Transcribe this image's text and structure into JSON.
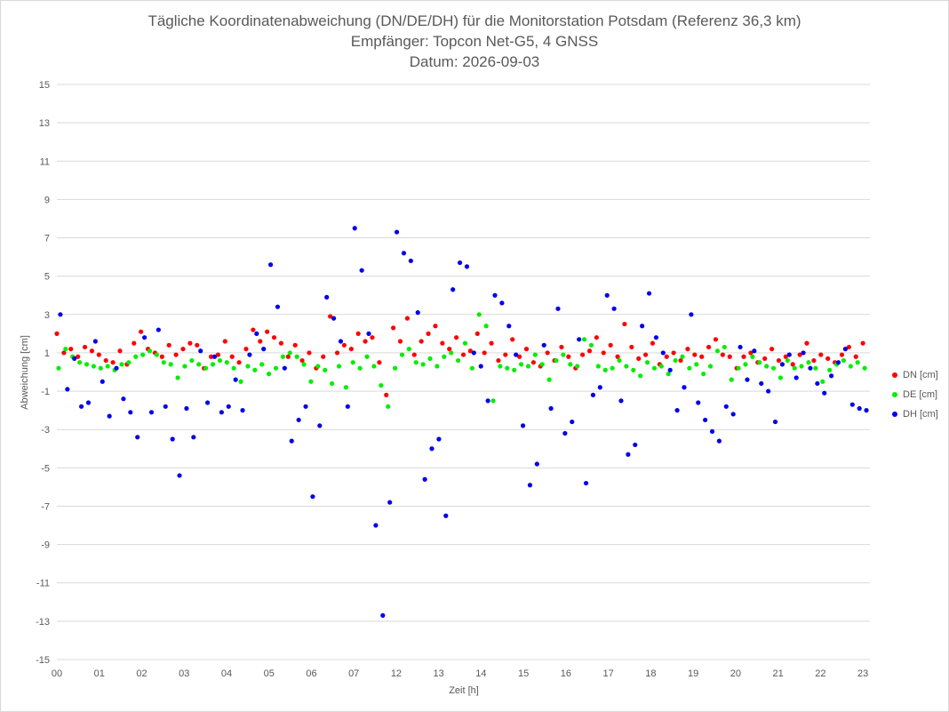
{
  "chart_data": {
    "type": "scatter",
    "title": "Tägliche Koordinatenabweichung (DN/DE/DH) für die Monitorstation Potsdam (Referenz 36,3 km)",
    "subtitle1": "Empfänger: Topcon Net-G5, 4 GNSS",
    "subtitle2": "Datum: 2026-09-03",
    "xlabel": "Zeit [h]",
    "ylabel": "Abweichung [cm]",
    "ylim": [
      -15,
      15
    ],
    "xlim": [
      0,
      23.2
    ],
    "y_ticks": [
      "15",
      "13",
      "11",
      "9",
      "7",
      "5",
      "3",
      "1",
      "-1",
      "-3",
      "-5",
      "-7",
      "-9",
      "-11",
      "-13",
      "-15"
    ],
    "x_ticks": [
      "00",
      "01",
      "02",
      "03",
      "04",
      "05",
      "06",
      "07",
      "12",
      "13",
      "14",
      "15",
      "16",
      "17",
      "18",
      "19",
      "20",
      "21",
      "22",
      "23"
    ],
    "grid": "horizontal",
    "legend_position": "right",
    "series": [
      {
        "name": "DN [cm]",
        "color": "#ff0000",
        "x": [
          0.0,
          0.2,
          0.4,
          0.6,
          0.8,
          1.0,
          1.2,
          1.4,
          1.6,
          1.8,
          2.0,
          2.2,
          2.4,
          2.6,
          2.8,
          3.0,
          3.2,
          3.4,
          3.6,
          3.8,
          4.0,
          4.2,
          4.4,
          4.6,
          4.8,
          5.0,
          5.2,
          5.4,
          5.6,
          5.8,
          6.0,
          6.2,
          6.4,
          6.6,
          6.8,
          7.0,
          7.2,
          7.4,
          7.6,
          7.8,
          8.0,
          8.2,
          8.4,
          8.6,
          8.8,
          9.0,
          9.2,
          9.4,
          9.6,
          9.8,
          10.0,
          10.2,
          10.4,
          10.6,
          10.8,
          11.0,
          11.2,
          11.4,
          11.6,
          11.8,
          12.0,
          12.2,
          12.4,
          12.6,
          12.8,
          13.0,
          13.2,
          13.4,
          13.6,
          13.8,
          14.0,
          14.2,
          14.4,
          14.6,
          14.8,
          15.0,
          15.2,
          15.4,
          15.6,
          15.8,
          16.0,
          16.2,
          16.4,
          16.6,
          16.8,
          17.0,
          17.2,
          17.4,
          17.6,
          17.8,
          18.0,
          18.2,
          18.4,
          18.6,
          18.8,
          19.0,
          19.2,
          19.4,
          19.6,
          19.8,
          20.0,
          20.2,
          20.4,
          20.6,
          20.8,
          21.0,
          21.2,
          21.4,
          21.6,
          21.8,
          22.0,
          22.2,
          22.4,
          22.6,
          22.8,
          23.0
        ],
        "y": [
          2.0,
          1.0,
          1.2,
          0.8,
          1.3,
          1.1,
          0.9,
          0.6,
          0.5,
          1.1,
          0.4,
          1.5,
          2.1,
          1.2,
          1.0,
          0.8,
          1.4,
          0.9,
          1.2,
          1.5,
          1.4,
          0.2,
          0.8,
          0.9,
          1.6,
          0.8,
          0.5,
          1.2,
          2.2,
          1.6,
          2.1,
          1.8,
          1.5,
          0.8,
          1.4,
          0.6,
          1.0,
          0.2,
          0.8,
          2.9,
          1.0,
          1.4,
          1.2,
          2.0,
          1.6,
          1.8,
          0.5,
          -1.2,
          2.3,
          1.6,
          2.8,
          0.9,
          1.6,
          2.0,
          2.4,
          1.5,
          1.2,
          1.8,
          0.9,
          1.1,
          2.0,
          1.0,
          1.5,
          0.6,
          0.9,
          1.7,
          0.8,
          1.2,
          0.5,
          0.3,
          1.0,
          0.6,
          1.3,
          0.8,
          0.2,
          0.9,
          1.1,
          1.8,
          1.0,
          1.4,
          0.8,
          2.5,
          1.3,
          0.7,
          0.9,
          1.5,
          0.4,
          0.8,
          1.0,
          0.6,
          1.2,
          0.9,
          0.8,
          1.3,
          1.7,
          0.9,
          0.8,
          0.2,
          0.8,
          1.0,
          0.5,
          0.7,
          1.2,
          0.6,
          0.8,
          0.4,
          0.9,
          1.5,
          0.6,
          0.9,
          0.7,
          0.5,
          0.9,
          1.3,
          0.8,
          1.5
        ]
      },
      {
        "name": "DE [cm]",
        "color": "#00ee00",
        "x": [
          0.05,
          0.25,
          0.45,
          0.65,
          0.85,
          1.05,
          1.25,
          1.45,
          1.65,
          1.85,
          2.05,
          2.25,
          2.45,
          2.65,
          2.85,
          3.05,
          3.25,
          3.45,
          3.65,
          3.85,
          4.05,
          4.25,
          4.45,
          4.65,
          4.85,
          5.05,
          5.25,
          5.45,
          5.65,
          5.85,
          6.05,
          6.25,
          6.45,
          6.65,
          6.85,
          7.05,
          7.25,
          7.45,
          7.65,
          7.85,
          8.05,
          8.25,
          8.45,
          8.65,
          8.85,
          9.05,
          9.25,
          9.45,
          9.65,
          9.85,
          10.05,
          10.25,
          10.45,
          10.65,
          10.85,
          11.05,
          11.25,
          11.45,
          11.65,
          11.85,
          12.05,
          12.25,
          12.45,
          12.65,
          12.85,
          13.05,
          13.25,
          13.45,
          13.65,
          13.85,
          14.05,
          14.25,
          14.45,
          14.65,
          14.85,
          15.05,
          15.25,
          15.45,
          15.65,
          15.85,
          16.05,
          16.25,
          16.45,
          16.65,
          16.85,
          17.05,
          17.25,
          17.45,
          17.65,
          17.85,
          18.05,
          18.25,
          18.45,
          18.65,
          18.85,
          19.05,
          19.25,
          19.45,
          19.65,
          19.85,
          20.05,
          20.25,
          20.45,
          20.65,
          20.85,
          21.05,
          21.25,
          21.45,
          21.65,
          21.85,
          22.05,
          22.25,
          22.45,
          22.65,
          22.85,
          23.05
        ],
        "y": [
          0.2,
          1.2,
          0.8,
          0.5,
          0.4,
          0.3,
          0.2,
          0.3,
          0.1,
          0.4,
          0.5,
          0.8,
          0.9,
          1.1,
          0.9,
          0.5,
          0.4,
          -0.3,
          0.3,
          0.6,
          0.4,
          0.2,
          0.4,
          0.6,
          0.5,
          0.2,
          -0.5,
          0.3,
          0.1,
          0.4,
          -0.1,
          0.2,
          0.8,
          1.0,
          0.8,
          0.4,
          -0.5,
          0.3,
          0.1,
          -0.6,
          0.3,
          -0.8,
          0.5,
          0.2,
          0.8,
          0.3,
          -0.7,
          -1.8,
          0.2,
          0.9,
          1.2,
          0.5,
          0.4,
          0.7,
          0.3,
          0.8,
          1.0,
          0.6,
          1.5,
          0.2,
          3.0,
          2.4,
          -1.5,
          0.3,
          0.2,
          0.1,
          0.4,
          0.3,
          0.9,
          0.4,
          -0.4,
          0.6,
          0.9,
          0.4,
          0.3,
          1.7,
          1.4,
          0.3,
          0.1,
          0.2,
          0.6,
          0.3,
          0.1,
          -0.2,
          0.5,
          0.2,
          0.3,
          -0.1,
          0.6,
          0.8,
          0.2,
          0.4,
          -0.1,
          0.3,
          1.1,
          1.3,
          -0.4,
          0.2,
          0.4,
          0.8,
          0.5,
          0.3,
          0.2,
          -0.3,
          0.6,
          0.2,
          0.3,
          0.5,
          0.2,
          -0.5,
          0.1,
          0.4,
          0.6,
          0.3,
          0.5,
          0.2
        ]
      },
      {
        "name": "DH [cm]",
        "color": "#0000ee",
        "x": [
          0.1,
          0.3,
          0.5,
          0.7,
          0.9,
          1.1,
          1.3,
          1.5,
          1.7,
          1.9,
          2.1,
          2.3,
          2.5,
          2.7,
          2.9,
          3.1,
          3.3,
          3.5,
          3.7,
          3.9,
          4.1,
          4.3,
          4.5,
          4.7,
          4.9,
          5.1,
          5.3,
          5.5,
          5.7,
          5.9,
          6.1,
          6.3,
          6.5,
          6.7,
          6.9,
          7.1,
          7.3,
          7.5,
          7.7,
          7.9,
          8.1,
          8.3,
          8.5,
          8.7,
          8.9,
          9.1,
          9.3,
          9.5,
          9.7,
          9.9,
          10.1,
          10.3,
          10.5,
          10.7,
          10.9,
          11.1,
          11.3,
          11.5,
          11.7,
          11.9,
          12.1,
          12.3,
          12.5,
          12.7,
          12.9,
          13.1,
          13.3,
          13.5,
          13.7,
          13.9,
          14.1,
          14.3,
          14.5,
          14.7,
          14.9,
          15.1,
          15.3,
          15.5,
          15.7,
          15.9,
          16.1,
          16.3,
          16.5,
          16.7,
          16.9,
          17.1,
          17.3,
          17.5,
          17.7,
          17.9,
          18.1,
          18.3,
          18.5,
          18.7,
          18.9,
          19.1,
          19.3,
          19.5,
          19.7,
          19.9,
          20.1,
          20.3,
          20.5,
          20.7,
          20.9,
          21.1,
          21.3,
          21.5,
          21.7,
          21.9,
          22.1,
          22.3,
          22.5,
          22.7,
          22.9,
          23.1
        ],
        "y": [
          3.0,
          -0.9,
          0.7,
          -1.8,
          -1.6,
          1.6,
          -0.5,
          -2.3,
          0.2,
          -1.4,
          -2.1,
          -3.4,
          1.8,
          -2.1,
          2.2,
          -1.8,
          -3.5,
          -5.4,
          -1.9,
          -3.4,
          1.1,
          -1.6,
          0.8,
          -2.1,
          -1.8,
          -0.4,
          -2.0,
          0.9,
          2.0,
          1.2,
          5.6,
          3.4,
          0.2,
          -3.6,
          -2.5,
          -1.8,
          -6.5,
          -2.8,
          3.9,
          2.8,
          1.6,
          -1.8,
          7.5,
          5.3,
          2.0,
          -8.0,
          -12.7,
          -6.8,
          7.3,
          6.2,
          5.8,
          3.1,
          -5.6,
          -4.0,
          -3.5,
          -7.5,
          4.3,
          5.7,
          5.5,
          1.0,
          0.3,
          -1.5,
          4.0,
          3.6,
          2.4,
          0.9,
          -2.8,
          -5.9,
          -4.8,
          1.4,
          -1.9,
          3.3,
          -3.2,
          -2.6,
          1.7,
          -5.8,
          -1.2,
          -0.8,
          4.0,
          3.3,
          -1.5,
          -4.3,
          -3.8,
          2.4,
          4.1,
          1.8,
          1.0,
          0.1,
          -2.0,
          -0.8,
          3.0,
          -1.6,
          -2.5,
          -3.1,
          -3.6,
          -1.8,
          -2.2,
          1.3,
          -0.4,
          1.1,
          -0.6,
          -1.0,
          -2.6,
          0.4,
          0.9,
          -0.3,
          1.0,
          0.2,
          -0.6,
          -1.1,
          -0.2,
          0.5,
          1.2,
          -1.7,
          -1.9,
          -2.0
        ]
      }
    ]
  }
}
